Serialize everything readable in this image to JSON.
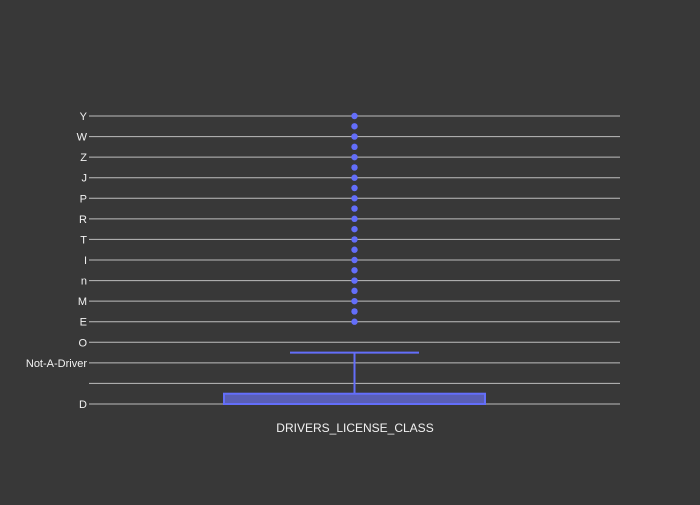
{
  "chart_data": {
    "type": "box",
    "orientation": "vertical",
    "title": "",
    "xlabel": "DRIVERS_LICENSE_CLASS",
    "ylabel": "",
    "categories": [
      "D",
      "",
      "Not-A-Driver",
      "O",
      "E",
      "M",
      "n",
      "I",
      "T",
      "R",
      "P",
      "J",
      "Z",
      "W",
      "Y"
    ],
    "grid": true,
    "legend": "none",
    "series": [
      {
        "box": {
          "lower_fence": "D",
          "q1": "D",
          "median": "D",
          "q3": "",
          "upper_fence": "O"
        },
        "outliers": [
          "E",
          "M",
          "n",
          "I",
          "T",
          "R",
          "P",
          "J",
          "Z",
          "W",
          "Y"
        ],
        "outlier_dots_per_gap": 1
      }
    ],
    "colors": {
      "background": "#383838",
      "grid": "#bdbdbd",
      "box_fill": "#5a5fb5",
      "box_stroke": "#636efa",
      "points": "#636efa",
      "text": "#f2f2f2"
    }
  }
}
